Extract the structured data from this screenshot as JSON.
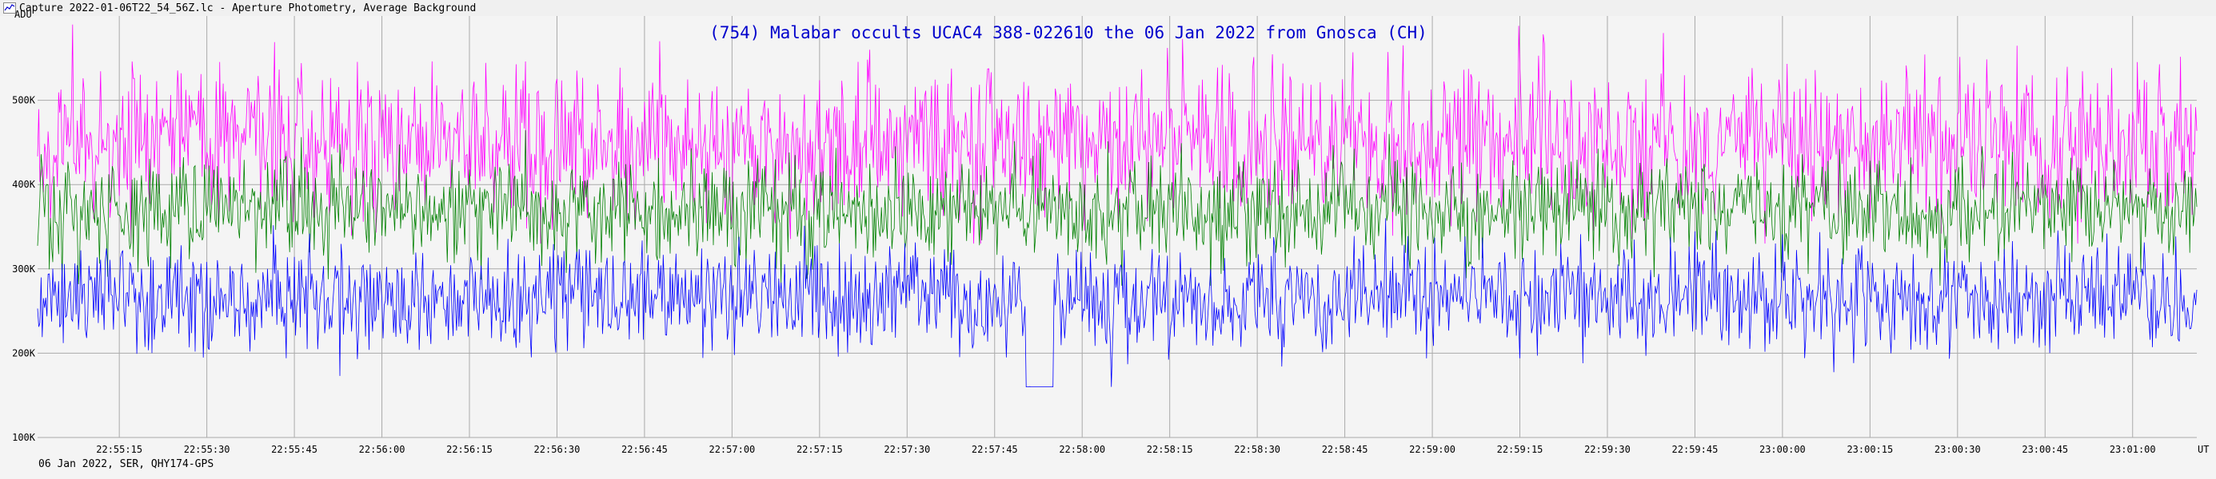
{
  "window": {
    "title": "Capture 2022-01-06T22_54_56Z.lc - Aperture Photometry, Average Background"
  },
  "footer": {
    "info": "06 Jan 2022, SER, QHY174-GPS"
  },
  "colors": {
    "background": "#f4f4f4",
    "plot_background": "#f4f4f4",
    "grid": "#aaaaaa",
    "title": "#0000cc",
    "series_target": "#0000ff",
    "series_comp1": "#008000",
    "series_comp2": "#ff00ff"
  },
  "chart_data": {
    "type": "line",
    "title": "(754) Malabar occults UCAC4 388-022610 the 06 Jan 2022 from Gnosca (CH)",
    "xlabel": "UT",
    "ylabel": "ADU",
    "ylim": [
      100000,
      600000
    ],
    "xlim": [
      "22:55:01",
      "23:01:11"
    ],
    "grid": true,
    "y_ticks": [
      "100K",
      "200K",
      "300K",
      "400K",
      "500K"
    ],
    "y_tick_values": [
      100000,
      200000,
      300000,
      400000,
      500000
    ],
    "x_ticks": [
      "22:55:15",
      "22:55:30",
      "22:55:45",
      "22:56:00",
      "22:56:15",
      "22:56:30",
      "22:56:45",
      "22:57:00",
      "22:57:15",
      "22:57:30",
      "22:57:45",
      "22:58:00",
      "22:58:15",
      "22:58:30",
      "22:58:45",
      "22:59:00",
      "22:59:15",
      "22:59:30",
      "22:59:45",
      "23:00:00",
      "23:00:15",
      "23:00:30",
      "23:00:45",
      "23:01:00"
    ],
    "sampling_interval_s": 0.2,
    "series": [
      {
        "color": "#ff00ff",
        "mean": 450000,
        "scatter": 45000,
        "range": [
          330000,
          590000
        ]
      },
      {
        "color": "#008000",
        "mean": 370000,
        "scatter": 30000,
        "range": [
          280000,
          470000
        ]
      },
      {
        "color": "#0000ff",
        "mean": 265000,
        "scatter": 30000,
        "range": [
          160000,
          360000
        ],
        "events": [
          {
            "start": "22:57:50.2",
            "end": "22:57:55",
            "level": 130000
          },
          {
            "time": "22:58:05",
            "value": 130000
          }
        ]
      }
    ]
  }
}
